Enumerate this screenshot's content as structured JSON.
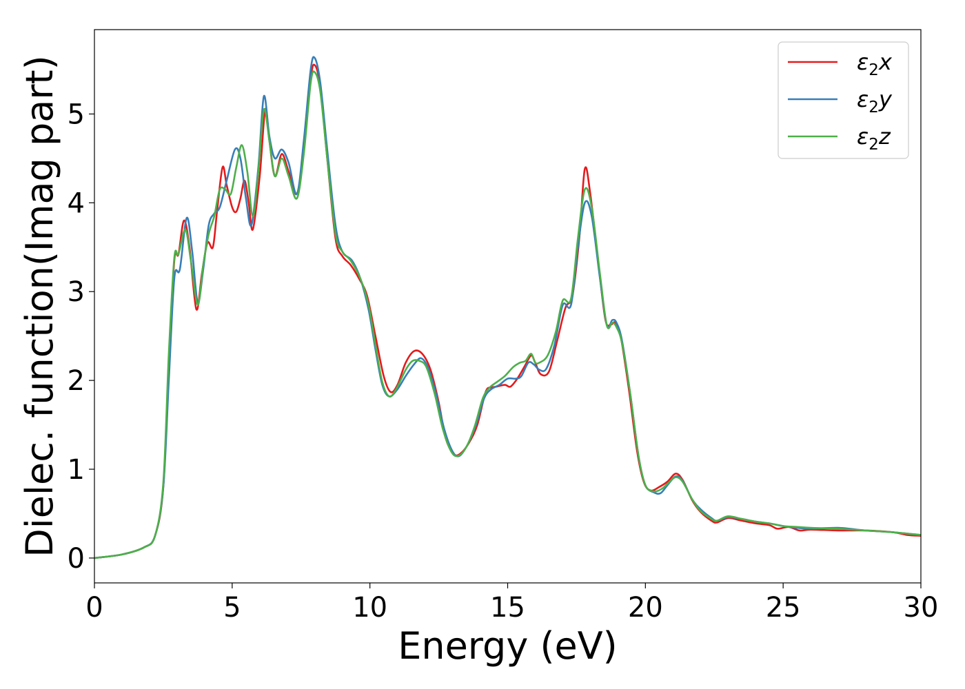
{
  "chart_data": {
    "type": "line",
    "xlabel": "Energy (eV)",
    "ylabel": "Dielec. function(Imag part)",
    "xlim": [
      0,
      30
    ],
    "ylim": [
      -0.28,
      5.95
    ],
    "xticks": [
      0,
      5,
      10,
      15,
      20,
      25,
      30
    ],
    "yticks": [
      0,
      1,
      2,
      3,
      4,
      5
    ],
    "legend_position": "top-right",
    "grid": false,
    "series": [
      {
        "name": "ε₂x",
        "label_main": "ε",
        "label_sub": "2",
        "label_tail": "x",
        "color": "#e41a1c",
        "points": [
          [
            0,
            0
          ],
          [
            1,
            0.04
          ],
          [
            1.8,
            0.12
          ],
          [
            2.2,
            0.25
          ],
          [
            2.5,
            0.8
          ],
          [
            2.7,
            2.2
          ],
          [
            2.9,
            3.35
          ],
          [
            3.05,
            3.42
          ],
          [
            3.25,
            3.8
          ],
          [
            3.45,
            3.5
          ],
          [
            3.7,
            2.8
          ],
          [
            3.9,
            3.2
          ],
          [
            4.1,
            3.55
          ],
          [
            4.3,
            3.5
          ],
          [
            4.45,
            3.9
          ],
          [
            4.65,
            4.4
          ],
          [
            4.8,
            4.2
          ],
          [
            5.0,
            3.95
          ],
          [
            5.15,
            3.9
          ],
          [
            5.3,
            4.05
          ],
          [
            5.45,
            4.25
          ],
          [
            5.6,
            4.0
          ],
          [
            5.75,
            3.7
          ],
          [
            6.0,
            4.3
          ],
          [
            6.2,
            5.05
          ],
          [
            6.35,
            4.7
          ],
          [
            6.55,
            4.3
          ],
          [
            6.8,
            4.55
          ],
          [
            7.05,
            4.35
          ],
          [
            7.35,
            4.1
          ],
          [
            7.6,
            4.6
          ],
          [
            7.85,
            5.4
          ],
          [
            8.0,
            5.55
          ],
          [
            8.2,
            5.3
          ],
          [
            8.45,
            4.5
          ],
          [
            8.75,
            3.6
          ],
          [
            9.0,
            3.4
          ],
          [
            9.3,
            3.3
          ],
          [
            9.6,
            3.15
          ],
          [
            9.9,
            2.95
          ],
          [
            10.2,
            2.5
          ],
          [
            10.5,
            2.05
          ],
          [
            10.75,
            1.87
          ],
          [
            11.0,
            1.95
          ],
          [
            11.3,
            2.2
          ],
          [
            11.6,
            2.33
          ],
          [
            11.9,
            2.3
          ],
          [
            12.2,
            2.12
          ],
          [
            12.5,
            1.75
          ],
          [
            12.75,
            1.35
          ],
          [
            13.05,
            1.17
          ],
          [
            13.3,
            1.18
          ],
          [
            13.6,
            1.3
          ],
          [
            13.9,
            1.5
          ],
          [
            14.2,
            1.87
          ],
          [
            14.4,
            1.92
          ],
          [
            14.6,
            1.93
          ],
          [
            14.9,
            1.95
          ],
          [
            15.1,
            1.93
          ],
          [
            15.35,
            2.02
          ],
          [
            15.6,
            2.15
          ],
          [
            15.85,
            2.28
          ],
          [
            16.0,
            2.2
          ],
          [
            16.2,
            2.07
          ],
          [
            16.5,
            2.1
          ],
          [
            16.8,
            2.45
          ],
          [
            17.1,
            2.82
          ],
          [
            17.35,
            2.95
          ],
          [
            17.6,
            3.6
          ],
          [
            17.8,
            4.38
          ],
          [
            18.0,
            4.1
          ],
          [
            18.3,
            3.3
          ],
          [
            18.55,
            2.68
          ],
          [
            18.75,
            2.63
          ],
          [
            18.9,
            2.65
          ],
          [
            19.1,
            2.5
          ],
          [
            19.4,
            1.9
          ],
          [
            19.7,
            1.2
          ],
          [
            19.95,
            0.85
          ],
          [
            20.2,
            0.76
          ],
          [
            20.5,
            0.8
          ],
          [
            20.8,
            0.86
          ],
          [
            21.1,
            0.95
          ],
          [
            21.35,
            0.88
          ],
          [
            21.7,
            0.65
          ],
          [
            22.0,
            0.52
          ],
          [
            22.4,
            0.42
          ],
          [
            22.6,
            0.4
          ],
          [
            23.0,
            0.45
          ],
          [
            23.5,
            0.42
          ],
          [
            24.0,
            0.39
          ],
          [
            24.5,
            0.37
          ],
          [
            24.8,
            0.33
          ],
          [
            25.2,
            0.35
          ],
          [
            25.6,
            0.31
          ],
          [
            26.0,
            0.32
          ],
          [
            27.0,
            0.31
          ],
          [
            28.0,
            0.31
          ],
          [
            29.0,
            0.29
          ],
          [
            29.5,
            0.26
          ],
          [
            30,
            0.25
          ]
        ]
      },
      {
        "name": "ε₂y",
        "label_main": "ε",
        "label_sub": "2",
        "label_tail": "y",
        "color": "#377eb8",
        "points": [
          [
            0,
            0
          ],
          [
            1,
            0.04
          ],
          [
            1.8,
            0.12
          ],
          [
            2.2,
            0.25
          ],
          [
            2.5,
            0.8
          ],
          [
            2.7,
            2.0
          ],
          [
            2.9,
            3.15
          ],
          [
            3.1,
            3.25
          ],
          [
            3.35,
            3.83
          ],
          [
            3.55,
            3.45
          ],
          [
            3.75,
            2.88
          ],
          [
            3.95,
            3.25
          ],
          [
            4.15,
            3.75
          ],
          [
            4.35,
            3.88
          ],
          [
            4.55,
            3.95
          ],
          [
            4.8,
            4.25
          ],
          [
            5.1,
            4.6
          ],
          [
            5.3,
            4.5
          ],
          [
            5.5,
            4.05
          ],
          [
            5.7,
            3.75
          ],
          [
            5.95,
            4.4
          ],
          [
            6.15,
            5.2
          ],
          [
            6.35,
            4.75
          ],
          [
            6.55,
            4.5
          ],
          [
            6.8,
            4.6
          ],
          [
            7.05,
            4.45
          ],
          [
            7.35,
            4.1
          ],
          [
            7.6,
            4.7
          ],
          [
            7.85,
            5.5
          ],
          [
            8.0,
            5.63
          ],
          [
            8.2,
            5.35
          ],
          [
            8.45,
            4.6
          ],
          [
            8.75,
            3.75
          ],
          [
            9.0,
            3.45
          ],
          [
            9.35,
            3.35
          ],
          [
            9.65,
            3.15
          ],
          [
            9.95,
            2.8
          ],
          [
            10.2,
            2.35
          ],
          [
            10.45,
            1.95
          ],
          [
            10.7,
            1.82
          ],
          [
            11.0,
            1.9
          ],
          [
            11.3,
            2.05
          ],
          [
            11.6,
            2.18
          ],
          [
            11.85,
            2.25
          ],
          [
            12.1,
            2.15
          ],
          [
            12.4,
            1.85
          ],
          [
            12.7,
            1.45
          ],
          [
            13.0,
            1.2
          ],
          [
            13.25,
            1.15
          ],
          [
            13.55,
            1.28
          ],
          [
            13.85,
            1.5
          ],
          [
            14.15,
            1.8
          ],
          [
            14.4,
            1.9
          ],
          [
            14.7,
            1.95
          ],
          [
            15.0,
            2.02
          ],
          [
            15.3,
            2.02
          ],
          [
            15.5,
            2.05
          ],
          [
            15.75,
            2.2
          ],
          [
            15.95,
            2.18
          ],
          [
            16.15,
            2.12
          ],
          [
            16.4,
            2.13
          ],
          [
            16.7,
            2.4
          ],
          [
            17.0,
            2.85
          ],
          [
            17.3,
            2.85
          ],
          [
            17.55,
            3.5
          ],
          [
            17.8,
            4.0
          ],
          [
            18.05,
            3.85
          ],
          [
            18.35,
            3.15
          ],
          [
            18.6,
            2.62
          ],
          [
            18.8,
            2.68
          ],
          [
            18.95,
            2.65
          ],
          [
            19.15,
            2.45
          ],
          [
            19.45,
            1.85
          ],
          [
            19.75,
            1.15
          ],
          [
            20.0,
            0.82
          ],
          [
            20.3,
            0.74
          ],
          [
            20.55,
            0.73
          ],
          [
            20.8,
            0.82
          ],
          [
            21.1,
            0.92
          ],
          [
            21.35,
            0.87
          ],
          [
            21.7,
            0.66
          ],
          [
            22.0,
            0.55
          ],
          [
            22.4,
            0.45
          ],
          [
            22.6,
            0.42
          ],
          [
            23.0,
            0.46
          ],
          [
            23.5,
            0.44
          ],
          [
            24.0,
            0.41
          ],
          [
            24.5,
            0.39
          ],
          [
            25.0,
            0.36
          ],
          [
            25.5,
            0.34
          ],
          [
            26.0,
            0.33
          ],
          [
            27.0,
            0.34
          ],
          [
            28.0,
            0.31
          ],
          [
            29.0,
            0.29
          ],
          [
            30,
            0.26
          ]
        ]
      },
      {
        "name": "ε₂z",
        "label_main": "ε",
        "label_sub": "2",
        "label_tail": "z",
        "color": "#4daf4a",
        "points": [
          [
            0,
            0
          ],
          [
            1,
            0.04
          ],
          [
            1.8,
            0.12
          ],
          [
            2.2,
            0.25
          ],
          [
            2.5,
            0.85
          ],
          [
            2.7,
            2.3
          ],
          [
            2.9,
            3.38
          ],
          [
            3.05,
            3.42
          ],
          [
            3.3,
            3.7
          ],
          [
            3.5,
            3.35
          ],
          [
            3.75,
            2.85
          ],
          [
            3.95,
            3.3
          ],
          [
            4.15,
            3.65
          ],
          [
            4.35,
            3.85
          ],
          [
            4.55,
            4.15
          ],
          [
            4.75,
            4.15
          ],
          [
            4.95,
            4.1
          ],
          [
            5.15,
            4.4
          ],
          [
            5.35,
            4.65
          ],
          [
            5.55,
            4.35
          ],
          [
            5.75,
            3.85
          ],
          [
            5.95,
            4.35
          ],
          [
            6.15,
            5.05
          ],
          [
            6.35,
            4.7
          ],
          [
            6.55,
            4.3
          ],
          [
            6.8,
            4.5
          ],
          [
            7.05,
            4.3
          ],
          [
            7.35,
            4.05
          ],
          [
            7.6,
            4.55
          ],
          [
            7.85,
            5.35
          ],
          [
            8.0,
            5.47
          ],
          [
            8.2,
            5.25
          ],
          [
            8.45,
            4.5
          ],
          [
            8.75,
            3.65
          ],
          [
            9.0,
            3.45
          ],
          [
            9.3,
            3.35
          ],
          [
            9.65,
            3.15
          ],
          [
            9.95,
            2.85
          ],
          [
            10.2,
            2.4
          ],
          [
            10.45,
            1.98
          ],
          [
            10.7,
            1.82
          ],
          [
            10.95,
            1.9
          ],
          [
            11.3,
            2.12
          ],
          [
            11.55,
            2.22
          ],
          [
            11.8,
            2.22
          ],
          [
            12.05,
            2.15
          ],
          [
            12.35,
            1.85
          ],
          [
            12.65,
            1.45
          ],
          [
            12.95,
            1.2
          ],
          [
            13.2,
            1.15
          ],
          [
            13.5,
            1.25
          ],
          [
            13.8,
            1.48
          ],
          [
            14.1,
            1.8
          ],
          [
            14.35,
            1.92
          ],
          [
            14.6,
            1.98
          ],
          [
            14.9,
            2.05
          ],
          [
            15.2,
            2.15
          ],
          [
            15.45,
            2.2
          ],
          [
            15.65,
            2.22
          ],
          [
            15.85,
            2.3
          ],
          [
            16.0,
            2.2
          ],
          [
            16.15,
            2.2
          ],
          [
            16.45,
            2.28
          ],
          [
            16.75,
            2.55
          ],
          [
            17.0,
            2.9
          ],
          [
            17.3,
            2.92
          ],
          [
            17.55,
            3.6
          ],
          [
            17.8,
            4.15
          ],
          [
            18.05,
            3.95
          ],
          [
            18.35,
            3.2
          ],
          [
            18.6,
            2.62
          ],
          [
            18.8,
            2.65
          ],
          [
            18.95,
            2.6
          ],
          [
            19.15,
            2.42
          ],
          [
            19.45,
            1.85
          ],
          [
            19.75,
            1.15
          ],
          [
            20.0,
            0.82
          ],
          [
            20.3,
            0.75
          ],
          [
            20.6,
            0.78
          ],
          [
            20.85,
            0.85
          ],
          [
            21.1,
            0.91
          ],
          [
            21.35,
            0.86
          ],
          [
            21.7,
            0.66
          ],
          [
            22.0,
            0.53
          ],
          [
            22.4,
            0.44
          ],
          [
            22.6,
            0.42
          ],
          [
            23.0,
            0.47
          ],
          [
            23.5,
            0.44
          ],
          [
            24.0,
            0.41
          ],
          [
            24.5,
            0.39
          ],
          [
            25.0,
            0.36
          ],
          [
            25.5,
            0.35
          ],
          [
            26.0,
            0.34
          ],
          [
            27.0,
            0.33
          ],
          [
            28.0,
            0.31
          ],
          [
            29.0,
            0.29
          ],
          [
            30,
            0.26
          ]
        ]
      }
    ]
  }
}
